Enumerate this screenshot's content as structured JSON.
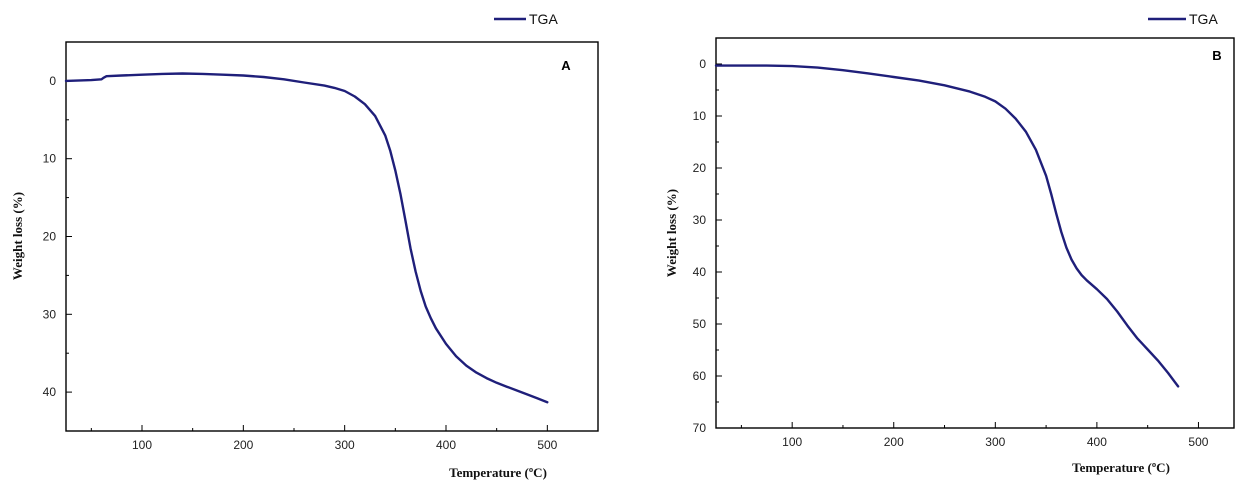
{
  "chart_data": [
    {
      "type": "line",
      "panel_label": "A",
      "xlabel": "Temperature (ºC)",
      "ylabel": "Weight loss (%)",
      "xlim": [
        25,
        550
      ],
      "ylim": [
        -5,
        45
      ],
      "y_inverted": true,
      "xticks": [
        100,
        200,
        300,
        400,
        500
      ],
      "yticks": [
        0,
        10,
        20,
        30,
        40
      ],
      "grid": false,
      "legend_position": "top-right",
      "color": "#1f1f7a",
      "series": [
        {
          "name": "TGA",
          "x": [
            25,
            50,
            60,
            62,
            65,
            80,
            100,
            120,
            140,
            160,
            180,
            200,
            220,
            240,
            260,
            280,
            290,
            300,
            310,
            320,
            330,
            340,
            345,
            350,
            355,
            360,
            365,
            370,
            375,
            380,
            385,
            390,
            400,
            410,
            420,
            430,
            440,
            450,
            460,
            470,
            480,
            490,
            500
          ],
          "y": [
            0.0,
            -0.1,
            -0.2,
            -0.4,
            -0.6,
            -0.7,
            -0.8,
            -0.9,
            -0.95,
            -0.9,
            -0.8,
            -0.7,
            -0.5,
            -0.2,
            0.2,
            0.6,
            0.9,
            1.3,
            2.0,
            3.0,
            4.5,
            7.0,
            9.0,
            11.5,
            14.5,
            18.0,
            21.5,
            24.5,
            27.0,
            29.0,
            30.5,
            31.8,
            33.8,
            35.4,
            36.6,
            37.5,
            38.2,
            38.8,
            39.3,
            39.8,
            40.3,
            40.8,
            41.3
          ]
        }
      ]
    },
    {
      "type": "line",
      "panel_label": "B",
      "xlabel": "Temperature (ºC)",
      "ylabel": "Weight loss (%)",
      "xlim": [
        25,
        535
      ],
      "ylim": [
        -5,
        70
      ],
      "y_inverted": true,
      "xticks": [
        100,
        200,
        300,
        400,
        500
      ],
      "yticks": [
        0,
        10,
        20,
        30,
        40,
        50,
        60,
        70
      ],
      "grid": false,
      "legend_position": "top-right",
      "color": "#1f1f7a",
      "series": [
        {
          "name": "TGA",
          "x": [
            25,
            50,
            75,
            100,
            125,
            150,
            175,
            200,
            225,
            250,
            275,
            290,
            300,
            310,
            320,
            330,
            340,
            350,
            355,
            360,
            365,
            370,
            375,
            380,
            385,
            390,
            400,
            410,
            420,
            430,
            440,
            450,
            460,
            470,
            480
          ],
          "y": [
            0.3,
            0.3,
            0.3,
            0.4,
            0.7,
            1.2,
            1.8,
            2.5,
            3.2,
            4.1,
            5.3,
            6.3,
            7.2,
            8.6,
            10.5,
            13.0,
            16.5,
            21.5,
            25.0,
            28.8,
            32.3,
            35.3,
            37.6,
            39.3,
            40.6,
            41.6,
            43.3,
            45.2,
            47.6,
            50.3,
            52.8,
            54.9,
            57.0,
            59.4,
            62.0
          ]
        }
      ]
    }
  ]
}
